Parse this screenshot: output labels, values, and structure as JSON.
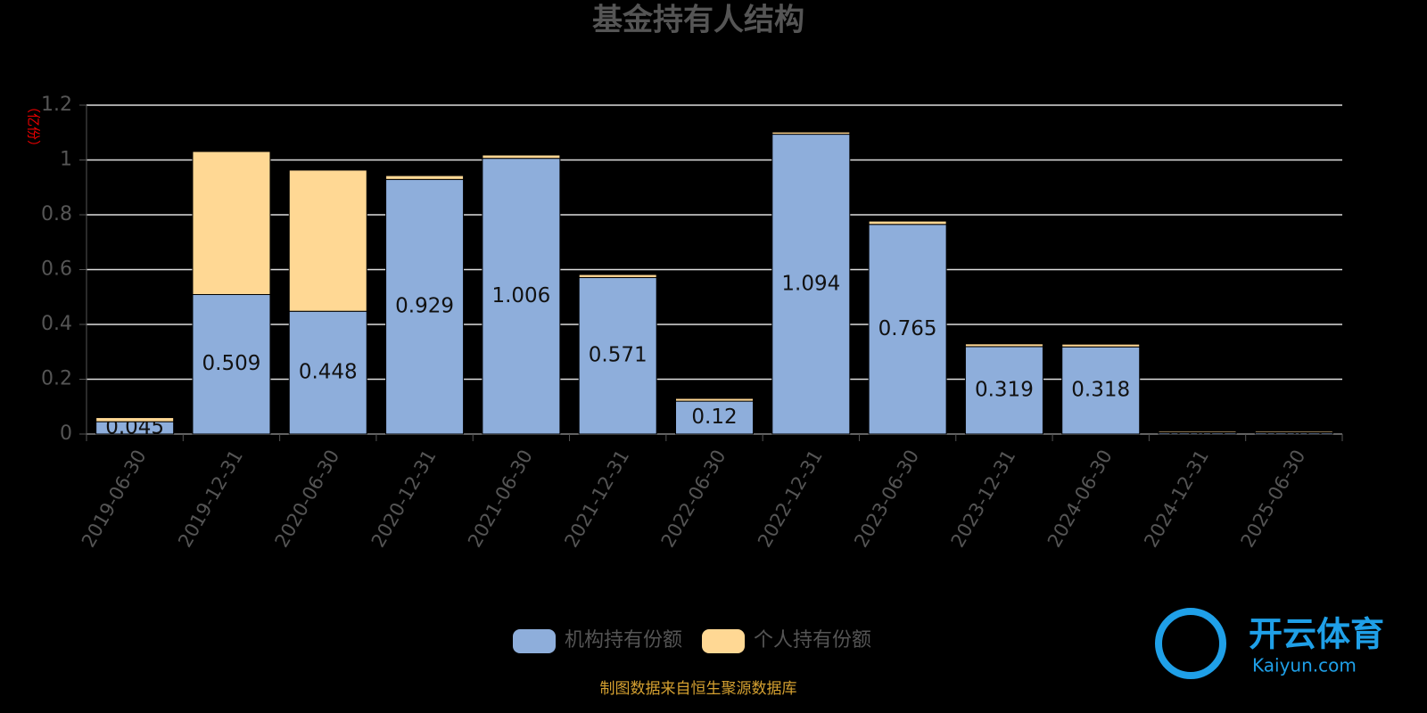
{
  "chart_data": {
    "type": "stacked_bar",
    "title": "基金持有人结构",
    "y_label": "（亿份）",
    "categories": [
      "2019-06-30",
      "2019-12-31",
      "2020-06-30",
      "2020-12-31",
      "2021-06-30",
      "2021-12-31",
      "2022-06-30",
      "2022-12-31",
      "2023-06-30",
      "2023-12-31",
      "2024-06-30",
      "2024-12-31",
      "2025-06-30"
    ],
    "series": [
      {
        "name": "机构持有份额",
        "color": "#8eaedb",
        "values": [
          0.045,
          0.509,
          0.448,
          0.929,
          1.006,
          0.571,
          0.12,
          1.094,
          0.765,
          0.319,
          0.318,
          0.005,
          0.005
        ]
      },
      {
        "name": "个人持有份额",
        "color": "#ffd894",
        "values": [
          0.015,
          0.522,
          0.515,
          0.014,
          0.012,
          0.011,
          0.01,
          0.008,
          0.012,
          0.01,
          0.01,
          0.005,
          0.005
        ]
      }
    ],
    "ylim": [
      0,
      1.2
    ],
    "yticks": [
      0,
      0.2,
      0.4,
      0.6,
      0.8,
      1,
      1.2
    ],
    "grid": true,
    "source": "制图数据来自恒生聚源数据库"
  },
  "watermark": {
    "name": "开云体育",
    "url": "Kaiyun.com"
  }
}
